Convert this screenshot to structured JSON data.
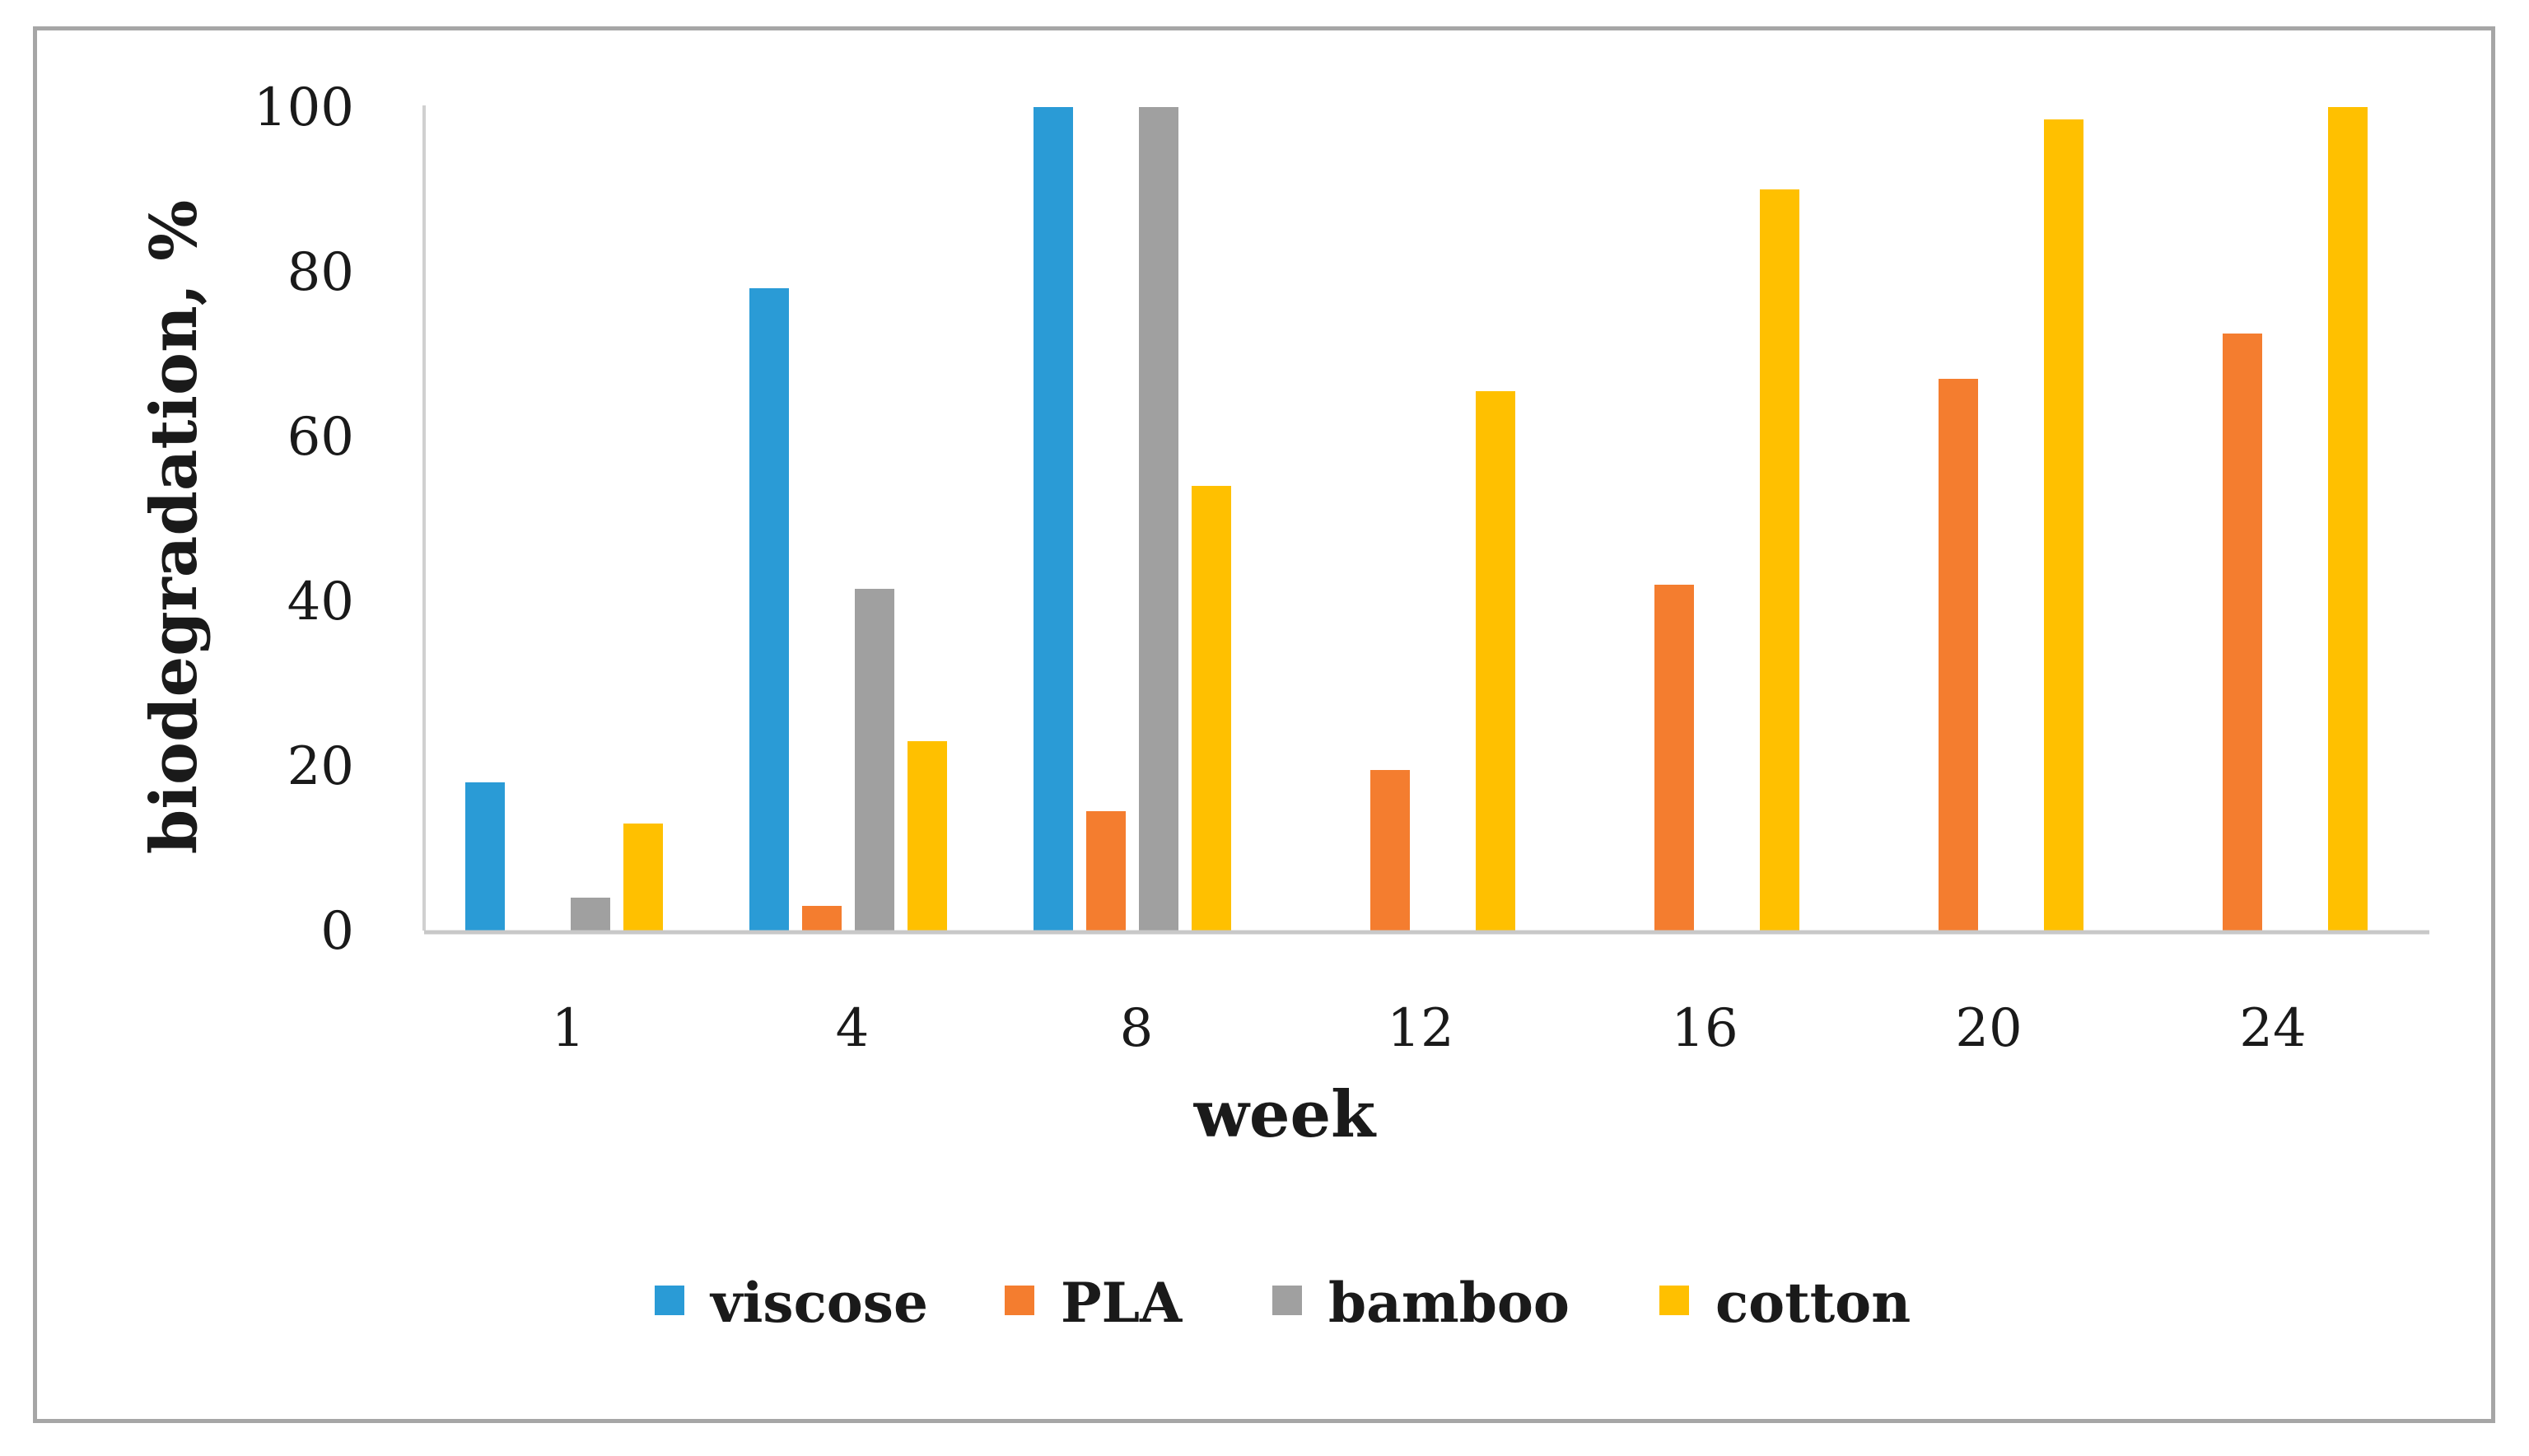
{
  "chart_data": {
    "type": "bar",
    "title": "",
    "xlabel": "week",
    "ylabel": "biodegradation, %",
    "categories": [
      "1",
      "4",
      "8",
      "12",
      "16",
      "20",
      "24"
    ],
    "ylim": [
      0,
      100
    ],
    "yticks": [
      "0",
      "20",
      "40",
      "60",
      "80",
      "100"
    ],
    "grid": false,
    "legend_position": "bottom-center",
    "series": [
      {
        "name": "viscose",
        "color": "#2A9BD6",
        "values": [
          18,
          78,
          100,
          null,
          null,
          null,
          null
        ]
      },
      {
        "name": "PLA",
        "color": "#F47D2F",
        "values": [
          0,
          3,
          14.5,
          19.5,
          42,
          67,
          72.5
        ]
      },
      {
        "name": "bamboo",
        "color": "#A0A0A0",
        "values": [
          4,
          41.5,
          100,
          null,
          null,
          null,
          null
        ]
      },
      {
        "name": "cotton",
        "color": "#FFC000",
        "values": [
          13,
          23,
          54,
          65.5,
          90,
          98.5,
          100
        ]
      }
    ]
  }
}
